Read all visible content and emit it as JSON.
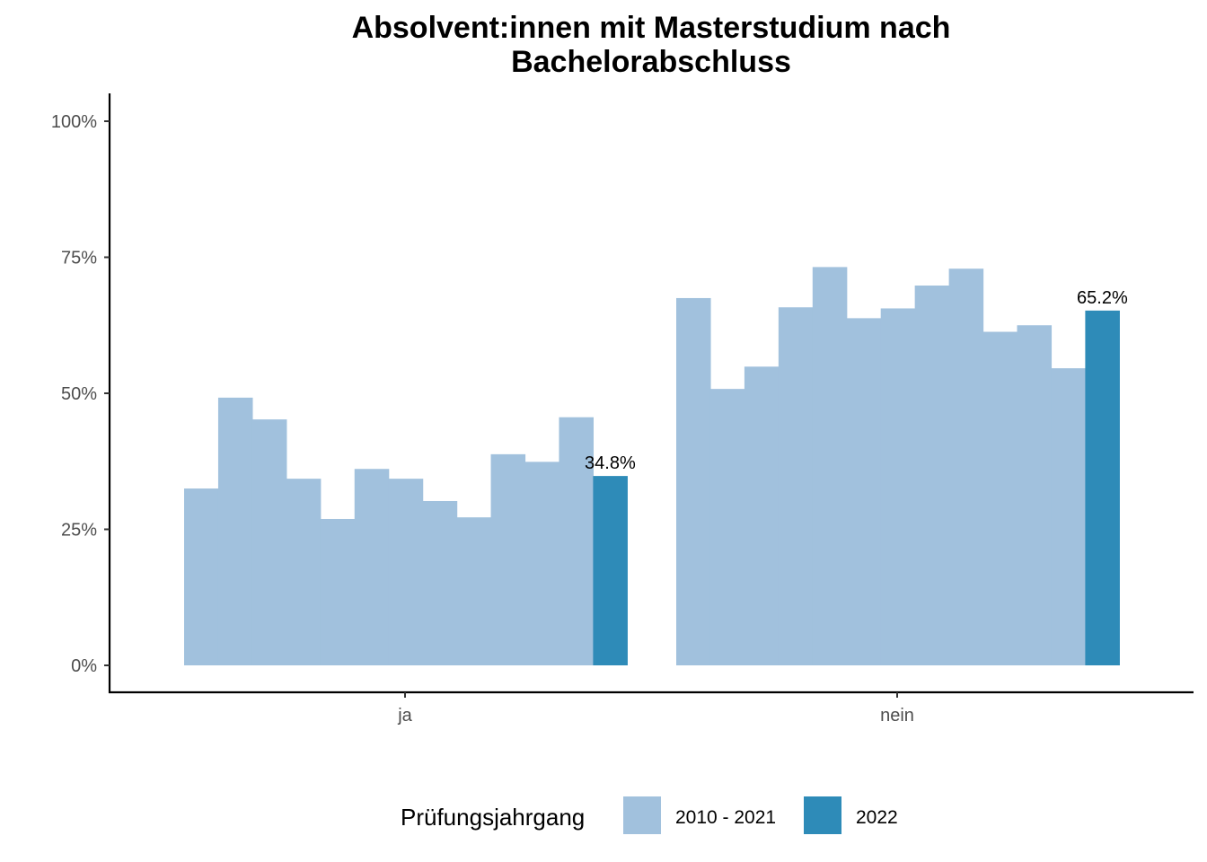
{
  "chart_data": {
    "type": "bar",
    "title_lines": [
      "Absolvent:innen mit Masterstudium nach",
      "Bachelorabschluss"
    ],
    "categories": [
      "ja",
      "nein"
    ],
    "y_ticks": [
      {
        "value": 0,
        "label": "0%"
      },
      {
        "value": 25,
        "label": "25%"
      },
      {
        "value": 50,
        "label": "50%"
      },
      {
        "value": 75,
        "label": "75%"
      },
      {
        "value": 100,
        "label": "100%"
      }
    ],
    "ylim": [
      -5,
      105
    ],
    "legend": {
      "title": "Prüfungsjahrgang",
      "position": "bottom",
      "entries": [
        {
          "name": "2010 - 2021",
          "color": "#a1c1dd"
        },
        {
          "name": "2022",
          "color": "#2e8bb8"
        }
      ]
    },
    "series": [
      {
        "name": "2010 - 2021",
        "color": "#a1c1dd",
        "groups": {
          "ja": [
            32.5,
            49.2,
            45.2,
            34.3,
            26.9,
            36.1,
            34.3,
            30.2,
            27.2,
            38.8,
            37.4,
            45.6
          ],
          "nein": [
            67.5,
            50.8,
            54.9,
            65.8,
            73.2,
            63.8,
            65.6,
            69.8,
            72.9,
            61.3,
            62.5,
            54.6
          ]
        }
      },
      {
        "name": "2022",
        "color": "#2e8bb8",
        "groups": {
          "ja": [
            34.8
          ],
          "nein": [
            65.2
          ]
        },
        "labels": {
          "ja": "34.8%",
          "nein": "65.2%"
        }
      }
    ]
  }
}
